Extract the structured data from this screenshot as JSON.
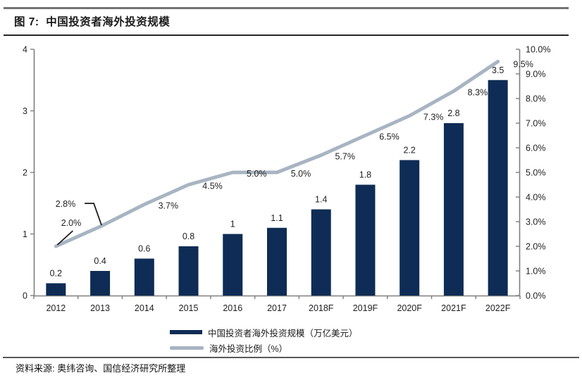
{
  "header": {
    "title": "图 7:  中国投资者海外投资规模"
  },
  "chart_data": {
    "type": "bar+line",
    "title": "中国投资者海外投资规模",
    "categories": [
      "2012",
      "2013",
      "2014",
      "2015",
      "2016",
      "2017",
      "2018F",
      "2019F",
      "2020F",
      "2021F",
      "2022F"
    ],
    "series": [
      {
        "name": "中国投资者海外投资规模（万亿美元）",
        "kind": "bar",
        "axis": "left",
        "color": "#0E2C55",
        "values": [
          0.2,
          0.4,
          0.6,
          0.8,
          1.0,
          1.1,
          1.4,
          1.8,
          2.2,
          2.8,
          3.5
        ],
        "labels": [
          "0.2",
          "0.4",
          "0.6",
          "0.8",
          "1",
          "1.1",
          "1.4",
          "1.8",
          "2.2",
          "2.8",
          "3.5"
        ]
      },
      {
        "name": "海外投资比例（%）",
        "kind": "line",
        "axis": "right",
        "color": "#A8B4C2",
        "values": [
          2.0,
          2.8,
          3.7,
          4.5,
          5.0,
          5.0,
          5.7,
          6.5,
          7.3,
          8.3,
          9.5
        ],
        "labels": [
          "2.0%",
          "2.8%",
          "3.7%",
          "4.5%",
          "5.0%",
          "5.0%",
          "5.7%",
          "6.5%",
          "7.3%",
          "8.3%",
          "9.5%"
        ]
      }
    ],
    "left_axis": {
      "min": 0,
      "max": 4,
      "ticks": [
        "0",
        "1",
        "2",
        "3",
        "4"
      ]
    },
    "right_axis": {
      "min": 0,
      "max": 10,
      "ticks": [
        "0.0%",
        "1.0%",
        "2.0%",
        "3.0%",
        "4.0%",
        "5.0%",
        "6.0%",
        "7.0%",
        "8.0%",
        "9.0%",
        "10.0%"
      ]
    },
    "grid": false,
    "legend_position": "bottom"
  },
  "footer": {
    "source": "资料来源: 奥纬咨询、国信经济研究所整理"
  },
  "colors": {
    "bar": "#0E2C55",
    "line": "#A8B4C2",
    "axis": "#7F7F7F",
    "label_text": "#1F1F1F",
    "callout_line": "#1a1a1a"
  }
}
